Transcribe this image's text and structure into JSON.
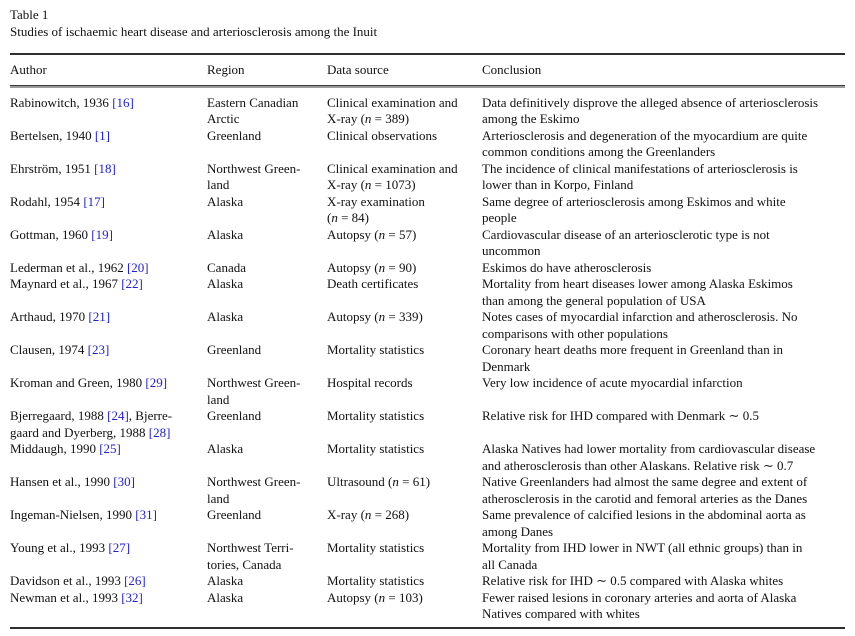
{
  "table": {
    "caption_line1": "Table 1",
    "caption_line2": "Studies of ischaemic heart disease and arteriosclerosis among the Inuit",
    "link_color": "#2222cc",
    "columns": [
      "Author",
      "Region",
      "Data source",
      "Conclusion"
    ],
    "rows": [
      {
        "author": [
          {
            "t": "text",
            "v": "Rabinowitch, 1936 "
          },
          {
            "t": "ref",
            "v": "[16]"
          }
        ],
        "region": "Eastern Canadian\nArctic",
        "source": "Clinical examination and\nX-ray (n = 389)",
        "conclusion": "Data definitively disprove the alleged absence of arteriosclerosis\namong the Eskimo"
      },
      {
        "author": [
          {
            "t": "text",
            "v": "Bertelsen, 1940 "
          },
          {
            "t": "ref",
            "v": "[1]"
          }
        ],
        "region": "Greenland",
        "source": "Clinical observations",
        "conclusion": "Arteriosclerosis and degeneration of the myocardium are quite\ncommon conditions among the Greenlanders"
      },
      {
        "author": [
          {
            "t": "text",
            "v": "Ehrström, 1951 "
          },
          {
            "t": "ref",
            "v": "[18]"
          }
        ],
        "region": "Northwest Green-\nland",
        "source": "Clinical examination and\nX-ray (n = 1073)",
        "conclusion": "The incidence of clinical manifestations of arteriosclerosis is\nlower than in Korpo, Finland"
      },
      {
        "author": [
          {
            "t": "text",
            "v": "Rodahl, 1954 "
          },
          {
            "t": "ref",
            "v": "[17]"
          }
        ],
        "region": "Alaska",
        "source": "X-ray examination\n(n = 84)",
        "conclusion": "Same degree of arteriosclerosis among Eskimos and white\npeople"
      },
      {
        "author": [
          {
            "t": "text",
            "v": "Gottman, 1960 "
          },
          {
            "t": "ref",
            "v": "[19]"
          }
        ],
        "region": "Alaska",
        "source": "Autopsy (n = 57)",
        "conclusion": "Cardiovascular disease of an arteriosclerotic type is not\nuncommon"
      },
      {
        "author": [
          {
            "t": "text",
            "v": "Lederman et al., 1962 "
          },
          {
            "t": "ref",
            "v": "[20]"
          }
        ],
        "region": "Canada",
        "source": "Autopsy (n = 90)",
        "conclusion": "Eskimos do have atherosclerosis"
      },
      {
        "author": [
          {
            "t": "text",
            "v": "Maynard et al., 1967 "
          },
          {
            "t": "ref",
            "v": "[22]"
          }
        ],
        "region": "Alaska",
        "source": "Death certificates",
        "conclusion": "Mortality from heart diseases lower among Alaska Eskimos\nthan among the general population of USA"
      },
      {
        "author": [
          {
            "t": "text",
            "v": "Arthaud, 1970 "
          },
          {
            "t": "ref",
            "v": "[21]"
          }
        ],
        "region": "Alaska",
        "source": "Autopsy (n = 339)",
        "conclusion": "Notes cases of myocardial infarction and atherosclerosis. No\ncomparisons with other populations"
      },
      {
        "author": [
          {
            "t": "text",
            "v": "Clausen, 1974 "
          },
          {
            "t": "ref",
            "v": "[23]"
          }
        ],
        "region": "Greenland",
        "source": "Mortality statistics",
        "conclusion": "Coronary heart deaths more frequent in Greenland than in\nDenmark"
      },
      {
        "author": [
          {
            "t": "text",
            "v": "Kroman and Green, 1980 "
          },
          {
            "t": "ref",
            "v": "[29]"
          }
        ],
        "region": "Northwest Green-\nland",
        "source": "Hospital records",
        "conclusion": "Very low incidence of acute myocardial infarction"
      },
      {
        "author": [
          {
            "t": "text",
            "v": "Bjerregaard, 1988 "
          },
          {
            "t": "ref",
            "v": "[24]"
          },
          {
            "t": "text",
            "v": ", Bjerre-\ngaard and Dyerberg, 1988 "
          },
          {
            "t": "ref",
            "v": "[28]"
          }
        ],
        "region": "Greenland",
        "source": "Mortality statistics",
        "conclusion": "Relative risk for IHD compared with Denmark ∼ 0.5"
      },
      {
        "author": [
          {
            "t": "text",
            "v": "Middaugh, 1990 "
          },
          {
            "t": "ref",
            "v": "[25]"
          }
        ],
        "region": "Alaska",
        "source": "Mortality statistics",
        "conclusion": "Alaska Natives had lower mortality from cardiovascular disease\nand atherosclerosis than other Alaskans. Relative risk ∼ 0.7"
      },
      {
        "author": [
          {
            "t": "text",
            "v": "Hansen et al., 1990 "
          },
          {
            "t": "ref",
            "v": "[30]"
          }
        ],
        "region": "Northwest Green-\nland",
        "source": "Ultrasound (n = 61)",
        "conclusion": "Native Greenlanders had almost the same degree and extent of\natherosclerosis in the carotid and femoral arteries as the Danes"
      },
      {
        "author": [
          {
            "t": "text",
            "v": "Ingeman-Nielsen, 1990 "
          },
          {
            "t": "ref",
            "v": "[31]"
          }
        ],
        "region": "Greenland",
        "source": "X-ray (n = 268)",
        "conclusion": "Same prevalence of calcified lesions in the abdominal aorta as\namong Danes"
      },
      {
        "author": [
          {
            "t": "text",
            "v": "Young et al., 1993 "
          },
          {
            "t": "ref",
            "v": "[27]"
          }
        ],
        "region": "Northwest Terri-\ntories, Canada",
        "source": "Mortality statistics",
        "conclusion": "Mortality from IHD lower in NWT (all ethnic groups) than in\nall Canada"
      },
      {
        "author": [
          {
            "t": "text",
            "v": "Davidson et al., 1993 "
          },
          {
            "t": "ref",
            "v": "[26]"
          }
        ],
        "region": "Alaska",
        "source": "Mortality statistics",
        "conclusion": "Relative risk for IHD ∼ 0.5 compared with Alaska whites"
      },
      {
        "author": [
          {
            "t": "text",
            "v": "Newman et al., 1993 "
          },
          {
            "t": "ref",
            "v": "[32]"
          }
        ],
        "region": "Alaska",
        "source": "Autopsy (n = 103)",
        "conclusion": "Fewer raised lesions in coronary arteries and aorta of Alaska\nNatives compared with whites"
      }
    ]
  }
}
